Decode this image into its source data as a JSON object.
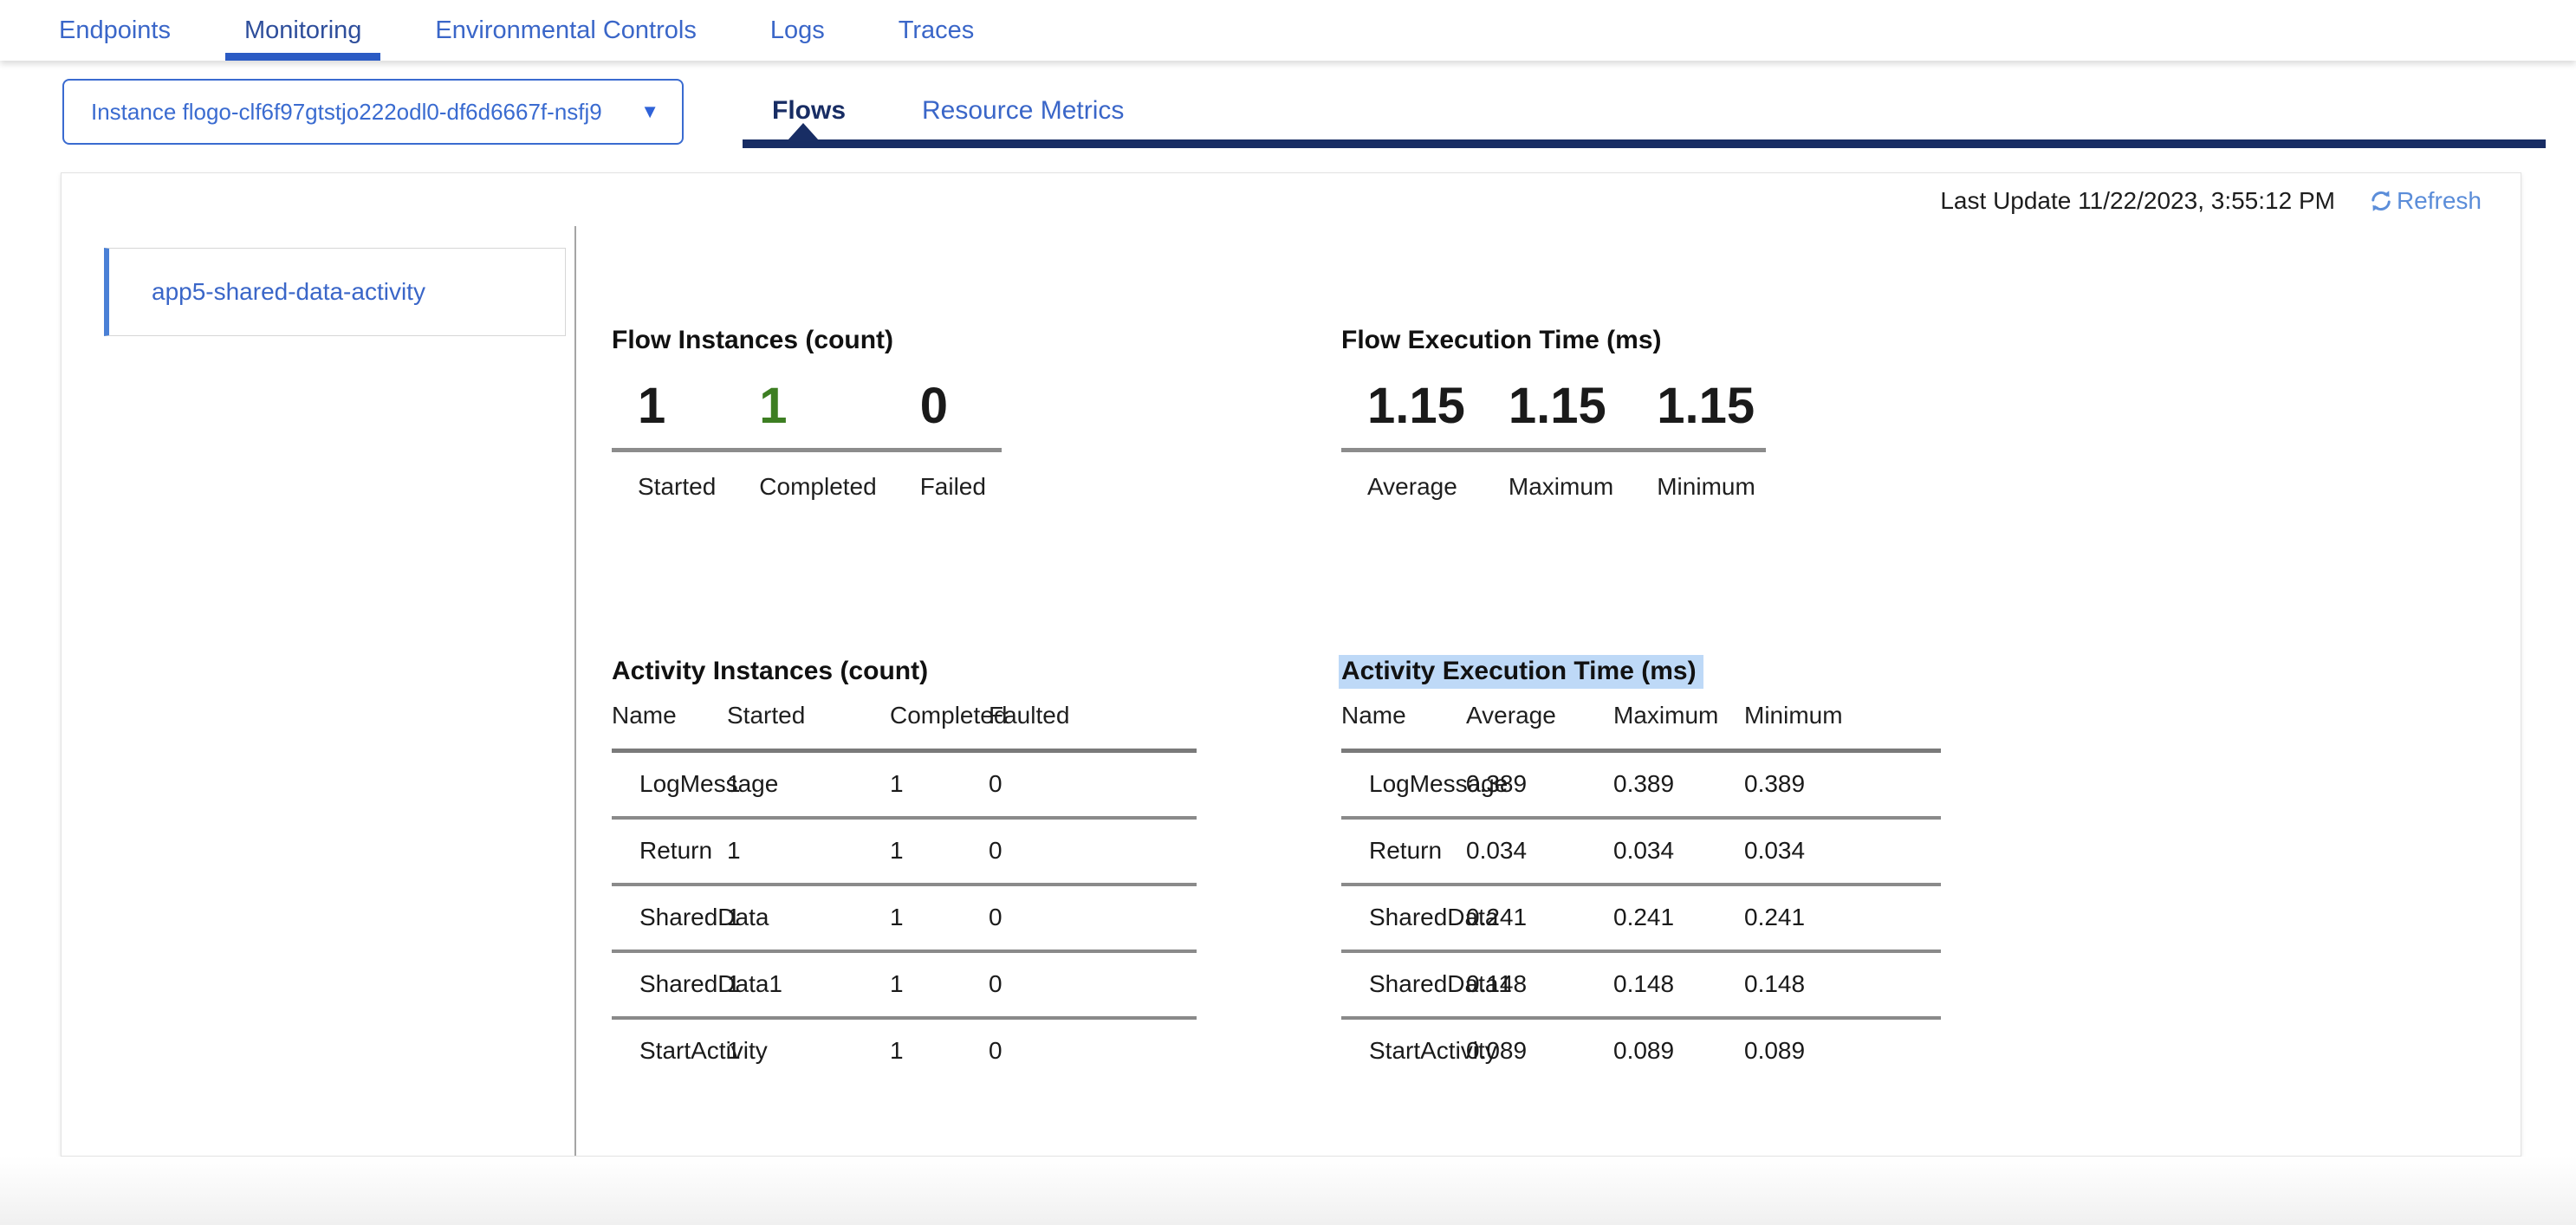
{
  "nav": {
    "tabs": [
      {
        "label": "Endpoints"
      },
      {
        "label": "Monitoring",
        "active": true
      },
      {
        "label": "Environmental Controls"
      },
      {
        "label": "Logs"
      },
      {
        "label": "Traces"
      }
    ]
  },
  "instance_selector": {
    "value": "Instance flogo-clf6f97gtstjo222odl0-df6d6667f-nsfj9"
  },
  "subtabs": {
    "tabs": [
      {
        "label": "Flows",
        "active": true
      },
      {
        "label": "Resource Metrics"
      }
    ]
  },
  "icons": {
    "dropdown_caret": "▼",
    "refresh": "refresh-cycle-arrows"
  },
  "panel": {
    "last_update_label": "Last Update 11/22/2023, 3:55:12 PM",
    "refresh_label": "Refresh",
    "sidebar": {
      "items": [
        {
          "label": "app5-shared-data-activity",
          "active": true
        }
      ]
    },
    "flow_instances": {
      "title": "Flow Instances (count)",
      "metrics": [
        {
          "label": "Started",
          "value": "1"
        },
        {
          "label": "Completed",
          "value": "1",
          "color": "#3d7e22"
        },
        {
          "label": "Failed",
          "value": "0"
        }
      ]
    },
    "flow_execution": {
      "title": "Flow Execution Time (ms)",
      "metrics": [
        {
          "label": "Average",
          "value": "1.15"
        },
        {
          "label": "Maximum",
          "value": "1.15"
        },
        {
          "label": "Minimum",
          "value": "1.15"
        }
      ]
    },
    "activity_instances": {
      "title": "Activity Instances (count)",
      "columns": [
        "Name",
        "Started",
        "Completed",
        "Faulted"
      ],
      "rows": [
        [
          "LogMessage",
          "1",
          "1",
          "0"
        ],
        [
          "Return",
          "1",
          "1",
          "0"
        ],
        [
          "SharedData",
          "1",
          "1",
          "0"
        ],
        [
          "SharedData1",
          "1",
          "1",
          "0"
        ],
        [
          "StartActivity",
          "1",
          "1",
          "0"
        ]
      ]
    },
    "activity_execution": {
      "title": "Activity Execution Time (ms)",
      "highlighted": true,
      "columns": [
        "Name",
        "Average",
        "Maximum",
        "Minimum"
      ],
      "rows": [
        [
          "LogMessage",
          "0.389",
          "0.389",
          "0.389"
        ],
        [
          "Return",
          "0.034",
          "0.034",
          "0.034"
        ],
        [
          "SharedData",
          "0.241",
          "0.241",
          "0.241"
        ],
        [
          "SharedData1",
          "0.148",
          "0.148",
          "0.148"
        ],
        [
          "StartActivity",
          "0.089",
          "0.089",
          "0.089"
        ]
      ]
    }
  },
  "colors": {
    "accent_blue": "#3a66c8",
    "active_nav_text": "#2e4e9b",
    "active_nav_underline": "#2b5bc4",
    "navy": "#182d64",
    "green_completed": "#3d7e22",
    "refresh_blue": "#5b8dd9",
    "selection_highlight": "#bed9f7"
  }
}
